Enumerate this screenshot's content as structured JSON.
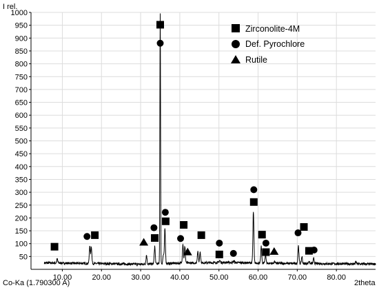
{
  "chart_data": {
    "type": "line",
    "y_axis_label": "I rel.",
    "x_axis_label": "2theta",
    "source_label": "Co-Ka (1.790300 A)",
    "xlim": [
      2.0,
      90.0
    ],
    "ylim": [
      0,
      1000
    ],
    "x_ticks": [
      {
        "value": 10,
        "label": "10.00"
      },
      {
        "value": 20,
        "label": "20.00"
      },
      {
        "value": 30,
        "label": "30.00"
      },
      {
        "value": 40,
        "label": "40.00"
      },
      {
        "value": 50,
        "label": "50.00"
      },
      {
        "value": 60,
        "label": "60.00"
      },
      {
        "value": 70,
        "label": "70.00"
      },
      {
        "value": 80,
        "label": "80.00"
      }
    ],
    "y_ticks": [
      {
        "value": 50,
        "label": "50"
      },
      {
        "value": 100,
        "label": "100"
      },
      {
        "value": 150,
        "label": "150"
      },
      {
        "value": 200,
        "label": "200"
      },
      {
        "value": 250,
        "label": "250"
      },
      {
        "value": 300,
        "label": "300"
      },
      {
        "value": 350,
        "label": "350"
      },
      {
        "value": 400,
        "label": "400"
      },
      {
        "value": 450,
        "label": "450"
      },
      {
        "value": 500,
        "label": "500"
      },
      {
        "value": 550,
        "label": "550"
      },
      {
        "value": 600,
        "label": "600"
      },
      {
        "value": 650,
        "label": "650"
      },
      {
        "value": 700,
        "label": "700"
      },
      {
        "value": 750,
        "label": "750"
      },
      {
        "value": 800,
        "label": "800"
      },
      {
        "value": 850,
        "label": "850"
      },
      {
        "value": 900,
        "label": "900"
      },
      {
        "value": 950,
        "label": "950"
      },
      {
        "value": 1000,
        "label": "1000"
      }
    ],
    "series": [
      {
        "color": "#000000",
        "peaks": [
          {
            "x": 8.7,
            "y": 40
          },
          {
            "x": 17.0,
            "y": 88
          },
          {
            "x": 17.4,
            "y": 90
          },
          {
            "x": 31.5,
            "y": 55
          },
          {
            "x": 33.6,
            "y": 90
          },
          {
            "x": 35.0,
            "y": 1000
          },
          {
            "x": 35.8,
            "y": 55
          },
          {
            "x": 36.2,
            "y": 160
          },
          {
            "x": 40.8,
            "y": 100
          },
          {
            "x": 41.3,
            "y": 90
          },
          {
            "x": 44.6,
            "y": 72
          },
          {
            "x": 45.2,
            "y": 70
          },
          {
            "x": 50.2,
            "y": 35
          },
          {
            "x": 53.8,
            "y": 32
          },
          {
            "x": 58.8,
            "y": 225
          },
          {
            "x": 60.8,
            "y": 88
          },
          {
            "x": 61.9,
            "y": 58
          },
          {
            "x": 64.2,
            "y": 30
          },
          {
            "x": 70.3,
            "y": 92
          },
          {
            "x": 71.2,
            "y": 50
          },
          {
            "x": 73.0,
            "y": 32
          },
          {
            "x": 74.2,
            "y": 42
          },
          {
            "x": 85.0,
            "y": 30
          }
        ]
      }
    ],
    "phase_markers": [
      {
        "phase": "zirconolite",
        "x": 8.0,
        "y": 88
      },
      {
        "phase": "zirconolite",
        "x": 18.3,
        "y": 133
      },
      {
        "phase": "zirconolite",
        "x": 33.6,
        "y": 122
      },
      {
        "phase": "zirconolite",
        "x": 35.0,
        "y": 952
      },
      {
        "phase": "zirconolite",
        "x": 36.4,
        "y": 187
      },
      {
        "phase": "zirconolite",
        "x": 41.0,
        "y": 173
      },
      {
        "phase": "zirconolite",
        "x": 45.5,
        "y": 133
      },
      {
        "phase": "zirconolite",
        "x": 50.1,
        "y": 58
      },
      {
        "phase": "zirconolite",
        "x": 58.9,
        "y": 262
      },
      {
        "phase": "zirconolite",
        "x": 61.0,
        "y": 135
      },
      {
        "phase": "zirconolite",
        "x": 62.0,
        "y": 67
      },
      {
        "phase": "zirconolite",
        "x": 71.7,
        "y": 165
      },
      {
        "phase": "zirconolite",
        "x": 73.0,
        "y": 72
      },
      {
        "phase": "pyrochlore",
        "x": 16.3,
        "y": 128
      },
      {
        "phase": "pyrochlore",
        "x": 33.4,
        "y": 162
      },
      {
        "phase": "pyrochlore",
        "x": 35.0,
        "y": 880
      },
      {
        "phase": "pyrochlore",
        "x": 36.3,
        "y": 222
      },
      {
        "phase": "pyrochlore",
        "x": 40.2,
        "y": 120
      },
      {
        "phase": "pyrochlore",
        "x": 50.1,
        "y": 102
      },
      {
        "phase": "pyrochlore",
        "x": 53.7,
        "y": 62
      },
      {
        "phase": "pyrochlore",
        "x": 58.9,
        "y": 310
      },
      {
        "phase": "pyrochlore",
        "x": 62.0,
        "y": 102
      },
      {
        "phase": "pyrochlore",
        "x": 70.2,
        "y": 142
      },
      {
        "phase": "pyrochlore",
        "x": 74.3,
        "y": 75
      },
      {
        "phase": "rutile",
        "x": 30.8,
        "y": 106
      },
      {
        "phase": "rutile",
        "x": 42.0,
        "y": 68
      },
      {
        "phase": "rutile",
        "x": 64.1,
        "y": 70
      }
    ],
    "legend": {
      "position": "top-right",
      "items": [
        {
          "symbol": "square",
          "label": "Zirconolite-4M"
        },
        {
          "symbol": "circle",
          "label": "Def. Pyrochlore"
        },
        {
          "symbol": "triangle",
          "label": "Rutile"
        }
      ]
    }
  }
}
